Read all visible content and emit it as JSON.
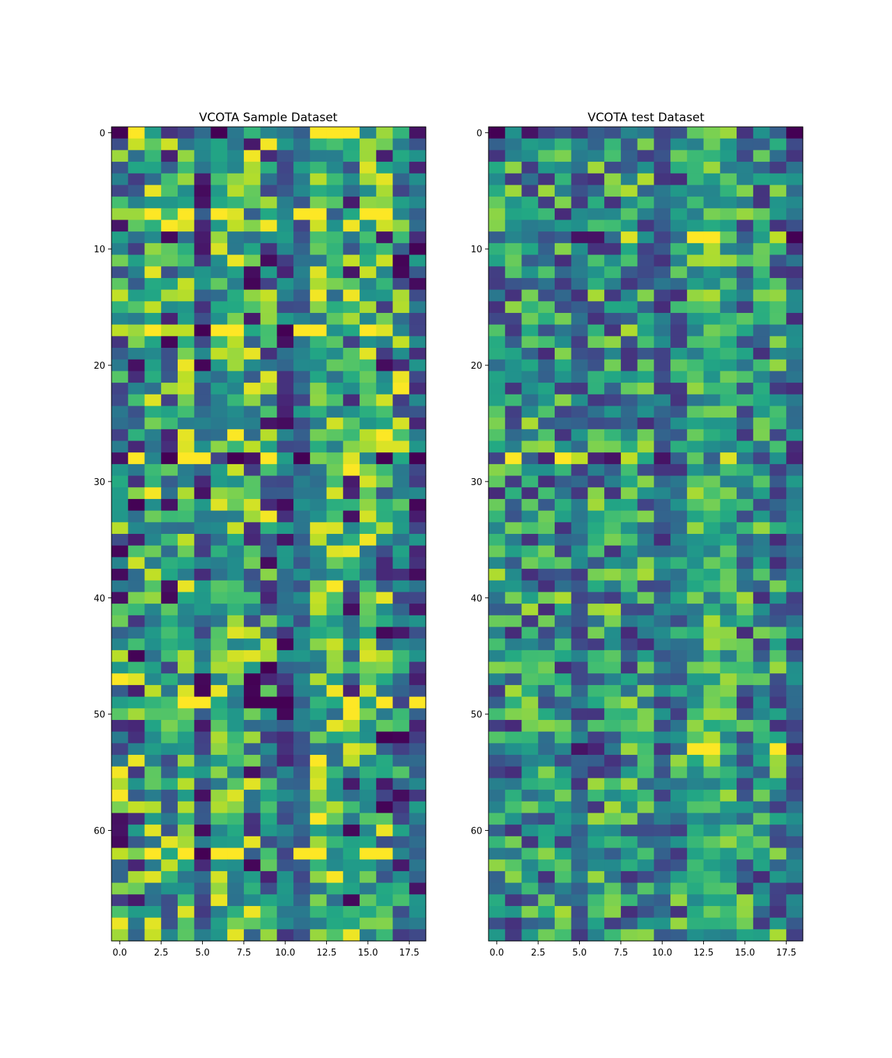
{
  "chart_data": [
    {
      "type": "heatmap",
      "title": "VCOTA Sample Dataset",
      "xlabel": "",
      "ylabel": "",
      "colormap": "viridis",
      "n_rows": 70,
      "n_cols": 19,
      "xlim": [
        -0.5,
        18.5
      ],
      "ylim": [
        69.5,
        -0.5
      ],
      "x_ticks": [
        0,
        2.5,
        5,
        7.5,
        10,
        12.5,
        15,
        17.5
      ],
      "x_tick_labels": [
        "0.0",
        "2.5",
        "5.0",
        "7.5",
        "10.0",
        "12.5",
        "15.0",
        "17.5"
      ],
      "y_ticks": [
        0,
        10,
        20,
        30,
        40,
        50,
        60
      ],
      "y_tick_labels": [
        "0",
        "10",
        "20",
        "30",
        "40",
        "50",
        "60"
      ],
      "grid": false,
      "seed": 7,
      "bright_cols": [
        2,
        4,
        6,
        7,
        11,
        12,
        13,
        15
      ],
      "dark_cols": [
        5,
        10,
        11,
        18
      ],
      "special_rows": {
        "0": [
          0.0,
          1.0,
          0.55,
          0.15,
          0.2,
          0.35,
          0.0,
          0.4,
          0.65,
          0.45,
          0.4,
          0.3,
          1.0,
          1.0,
          1.0,
          0.45,
          0.85,
          0.65,
          0.05
        ],
        "7": [
          0.85,
          0.85,
          1.0,
          0.7,
          1.0,
          0.3,
          1.0,
          0.95,
          0.3,
          0.6,
          0.45,
          1.0,
          1.0,
          0.3,
          0.6,
          1.0,
          1.0,
          0.45,
          0.3
        ],
        "17": [
          0.9,
          0.85,
          1.0,
          0.9,
          0.9,
          0.0,
          1.0,
          1.0,
          0.6,
          0.7,
          0.0,
          1.0,
          1.0,
          0.5,
          0.6,
          1.0,
          0.95,
          0.45,
          0.2
        ],
        "28": [
          0.05,
          1.0,
          0.45,
          0.0,
          1.0,
          1.0,
          0.2,
          0.0,
          0.05,
          1.0,
          0.55,
          0.0,
          0.8,
          0.75,
          0.95,
          0.45,
          0.0,
          0.6,
          0.0
        ],
        "49": [
          0.55,
          0.6,
          0.65,
          0.7,
          1.0,
          1.0,
          0.6,
          0.4,
          0.0,
          0.0,
          0.0,
          0.3,
          0.65,
          0.6,
          1.0,
          0.55,
          1.0,
          0.2,
          1.0
        ],
        "62": [
          0.9,
          0.8,
          1.0,
          0.6,
          1.0,
          0.0,
          1.0,
          1.0,
          0.3,
          0.7,
          0.2,
          1.0,
          1.0,
          0.45,
          0.6,
          1.0,
          1.0,
          0.45,
          0.3
        ]
      }
    },
    {
      "type": "heatmap",
      "title": "VCOTA test Dataset",
      "xlabel": "",
      "ylabel": "",
      "colormap": "viridis",
      "n_rows": 70,
      "n_cols": 19,
      "xlim": [
        -0.5,
        18.5
      ],
      "ylim": [
        69.5,
        -0.5
      ],
      "x_ticks": [
        0,
        2.5,
        5,
        7.5,
        10,
        12.5,
        15,
        17.5
      ],
      "x_tick_labels": [
        "0.0",
        "2.5",
        "5.0",
        "7.5",
        "10.0",
        "12.5",
        "15.0",
        "17.5"
      ],
      "y_ticks": [
        0,
        10,
        20,
        30,
        40,
        50,
        60
      ],
      "y_tick_labels": [
        "0",
        "10",
        "20",
        "30",
        "40",
        "50",
        "60"
      ],
      "grid": false,
      "seed": 23,
      "bright_cols": [
        12,
        13,
        14
      ],
      "dark_cols": [
        5,
        10,
        18
      ],
      "special_rows": {
        "0": [
          0.0,
          0.5,
          0.05,
          0.2,
          0.25,
          0.15,
          0.3,
          0.25,
          0.45,
          0.4,
          0.2,
          0.25,
          0.75,
          0.8,
          0.85,
          0.15,
          0.5,
          0.3,
          0.0
        ],
        "9": [
          0.3,
          0.45,
          0.4,
          0.25,
          0.3,
          0.05,
          0.05,
          0.35,
          0.95,
          0.5,
          0.2,
          0.35,
          1.0,
          1.0,
          0.75,
          0.3,
          0.55,
          0.9,
          0.0
        ],
        "28": [
          0.2,
          1.0,
          0.3,
          0.1,
          1.0,
          0.9,
          0.1,
          0.05,
          0.9,
          0.6,
          0.05,
          0.3,
          0.75,
          0.3,
          0.95,
          0.4,
          0.2,
          0.5,
          0.1
        ],
        "53": [
          0.4,
          0.5,
          0.55,
          0.35,
          0.45,
          0.05,
          0.1,
          0.4,
          0.85,
          0.7,
          0.15,
          0.35,
          1.0,
          1.0,
          0.7,
          0.35,
          0.5,
          1.0,
          0.1
        ]
      }
    }
  ]
}
